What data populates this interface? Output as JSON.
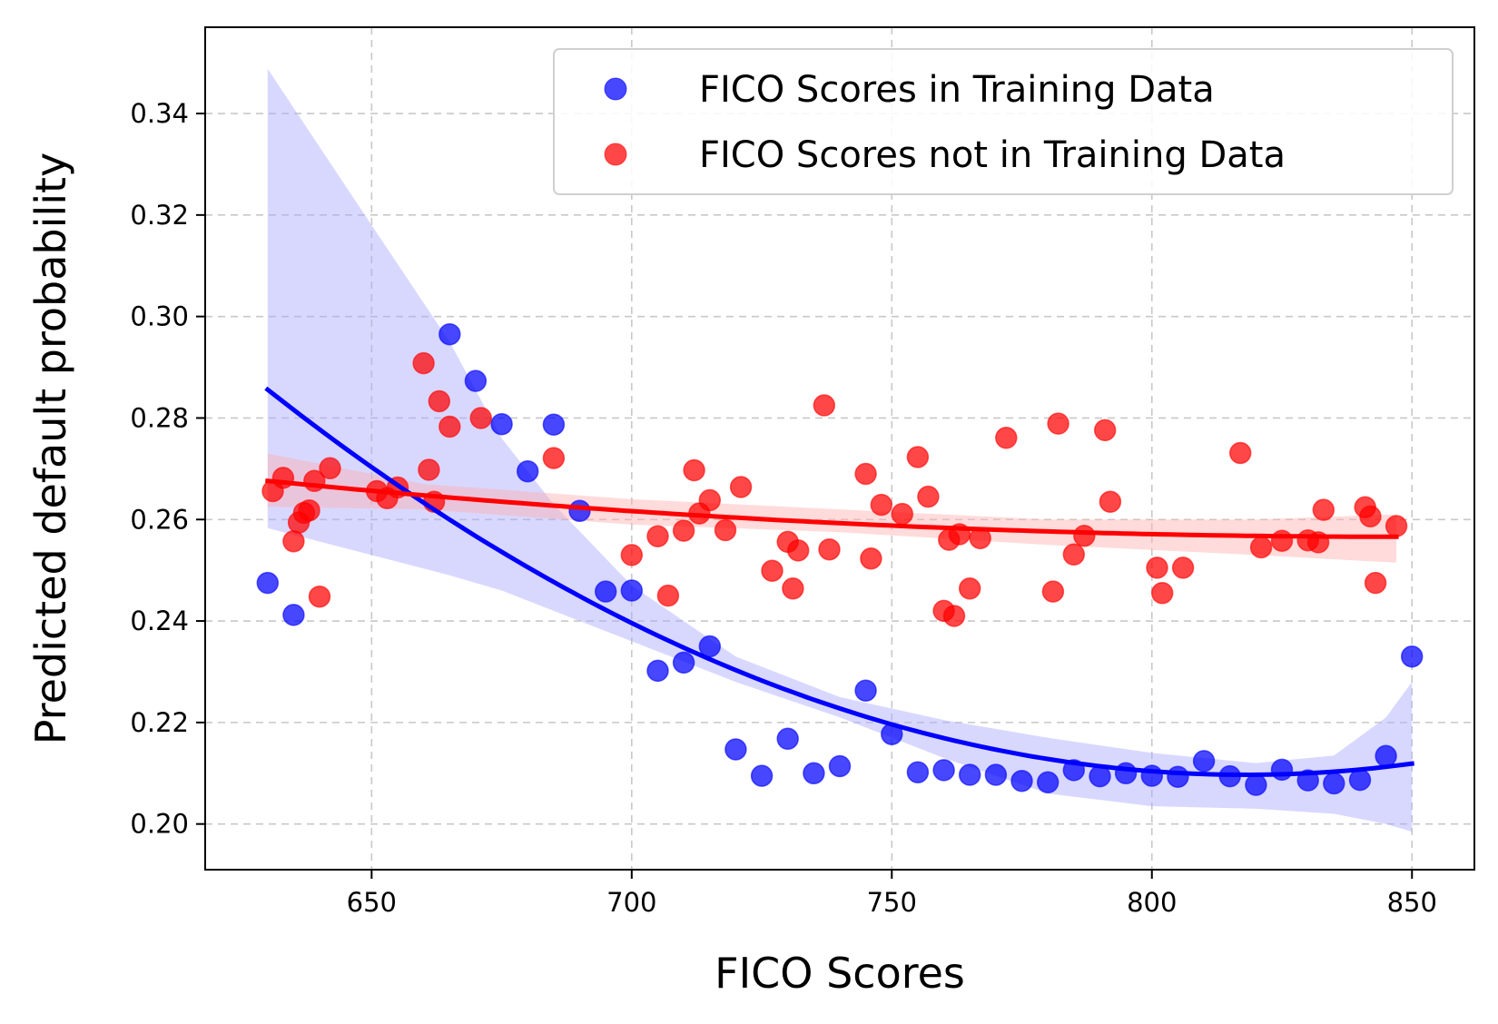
{
  "chart_data": {
    "type": "scatter",
    "title": "",
    "xlabel": "FICO Scores",
    "ylabel": "Predicted default probability",
    "xlim": [
      618,
      862
    ],
    "ylim": [
      0.191,
      0.357
    ],
    "xticks": [
      650,
      700,
      750,
      800,
      850
    ],
    "yticks": [
      0.2,
      0.22,
      0.24,
      0.26,
      0.28,
      0.3,
      0.32,
      0.34
    ],
    "xtick_labels": [
      "650",
      "700",
      "750",
      "800",
      "850"
    ],
    "ytick_labels": [
      "0.20",
      "0.22",
      "0.24",
      "0.26",
      "0.28",
      "0.30",
      "0.32",
      "0.34"
    ],
    "grid": true,
    "legend_position": "top-right",
    "series": [
      {
        "name": "FICO Scores in Training Data",
        "color": "#0000ff",
        "points": [
          [
            630,
            0.2475
          ],
          [
            635,
            0.2412
          ],
          [
            665,
            0.2965
          ],
          [
            670,
            0.2873
          ],
          [
            675,
            0.2788
          ],
          [
            680,
            0.2695
          ],
          [
            685,
            0.2787
          ],
          [
            690,
            0.2617
          ],
          [
            695,
            0.2458
          ],
          [
            700,
            0.246
          ],
          [
            705,
            0.2302
          ],
          [
            710,
            0.2318
          ],
          [
            715,
            0.235
          ],
          [
            720,
            0.2147
          ],
          [
            725,
            0.2095
          ],
          [
            730,
            0.2168
          ],
          [
            735,
            0.21
          ],
          [
            740,
            0.2114
          ],
          [
            745,
            0.2263
          ],
          [
            750,
            0.2177
          ],
          [
            755,
            0.2102
          ],
          [
            760,
            0.2106
          ],
          [
            765,
            0.2097
          ],
          [
            770,
            0.2097
          ],
          [
            775,
            0.2085
          ],
          [
            780,
            0.2082
          ],
          [
            785,
            0.2106
          ],
          [
            790,
            0.2094
          ],
          [
            795,
            0.21
          ],
          [
            800,
            0.2095
          ],
          [
            805,
            0.2093
          ],
          [
            810,
            0.2124
          ],
          [
            815,
            0.2094
          ],
          [
            820,
            0.2077
          ],
          [
            825,
            0.2107
          ],
          [
            830,
            0.2086
          ],
          [
            835,
            0.208
          ],
          [
            840,
            0.2087
          ],
          [
            845,
            0.2134
          ],
          [
            850,
            0.233
          ]
        ],
        "trend": {
          "type": "quadratic",
          "x_range": [
            630,
            850
          ],
          "start": [
            630,
            0.2856
          ],
          "vertex": [
            818,
            0.2097
          ],
          "end": [
            850,
            0.2113
          ]
        },
        "ci_band": {
          "x": [
            630,
            650,
            665,
            675,
            685,
            700,
            720,
            740,
            760,
            780,
            800,
            820,
            835,
            845,
            850
          ],
          "upper": [
            0.3488,
            0.318,
            0.295,
            0.276,
            0.263,
            0.247,
            0.233,
            0.225,
            0.2205,
            0.217,
            0.214,
            0.212,
            0.2135,
            0.221,
            0.228
          ],
          "lower": [
            0.2583,
            0.253,
            0.249,
            0.246,
            0.242,
            0.236,
            0.228,
            0.221,
            0.213,
            0.206,
            0.2035,
            0.203,
            0.202,
            0.2,
            0.1985
          ]
        }
      },
      {
        "name": "FICO Scores not in Training Data",
        "color": "#ff0000",
        "points": [
          [
            631,
            0.2656
          ],
          [
            633,
            0.2682
          ],
          [
            635,
            0.2557
          ],
          [
            636,
            0.2594
          ],
          [
            637,
            0.2613
          ],
          [
            638,
            0.2618
          ],
          [
            639,
            0.2676
          ],
          [
            640,
            0.2448
          ],
          [
            642,
            0.2701
          ],
          [
            651,
            0.2656
          ],
          [
            653,
            0.2642
          ],
          [
            655,
            0.2663
          ],
          [
            660,
            0.2908
          ],
          [
            661,
            0.2698
          ],
          [
            662,
            0.2635
          ],
          [
            663,
            0.2833
          ],
          [
            665,
            0.2783
          ],
          [
            671,
            0.28
          ],
          [
            685,
            0.2721
          ],
          [
            700,
            0.253
          ],
          [
            705,
            0.2567
          ],
          [
            707,
            0.245
          ],
          [
            710,
            0.2578
          ],
          [
            712,
            0.2697
          ],
          [
            713,
            0.2612
          ],
          [
            715,
            0.2638
          ],
          [
            718,
            0.2579
          ],
          [
            721,
            0.2664
          ],
          [
            727,
            0.2499
          ],
          [
            730,
            0.2556
          ],
          [
            731,
            0.2464
          ],
          [
            732,
            0.2539
          ],
          [
            737,
            0.2825
          ],
          [
            738,
            0.2541
          ],
          [
            745,
            0.269
          ],
          [
            746,
            0.2523
          ],
          [
            748,
            0.2629
          ],
          [
            752,
            0.2611
          ],
          [
            755,
            0.2723
          ],
          [
            757,
            0.2645
          ],
          [
            760,
            0.242
          ],
          [
            761,
            0.256
          ],
          [
            762,
            0.241
          ],
          [
            763,
            0.2571
          ],
          [
            765,
            0.2464
          ],
          [
            767,
            0.2563
          ],
          [
            772,
            0.2761
          ],
          [
            781,
            0.2458
          ],
          [
            782,
            0.2789
          ],
          [
            785,
            0.2531
          ],
          [
            787,
            0.2568
          ],
          [
            791,
            0.2776
          ],
          [
            792,
            0.2635
          ],
          [
            801,
            0.2505
          ],
          [
            802,
            0.2455
          ],
          [
            806,
            0.2505
          ],
          [
            817,
            0.2731
          ],
          [
            821,
            0.2545
          ],
          [
            825,
            0.2558
          ],
          [
            830,
            0.2559
          ],
          [
            832,
            0.2555
          ],
          [
            833,
            0.2619
          ],
          [
            841,
            0.2624
          ],
          [
            842,
            0.2606
          ],
          [
            843,
            0.2475
          ],
          [
            847,
            0.2587
          ]
        ],
        "trend": {
          "type": "quadratic",
          "x_range": [
            630,
            847
          ],
          "start": [
            630,
            0.2676
          ],
          "vertex": [
            847,
            0.2566
          ],
          "end": [
            847,
            0.2566
          ]
        },
        "ci_band": {
          "x": [
            630,
            660,
            700,
            740,
            780,
            820,
            847
          ],
          "upper": [
            0.273,
            0.267,
            0.264,
            0.262,
            0.26,
            0.26,
            0.261
          ],
          "lower": [
            0.2625,
            0.262,
            0.259,
            0.2575,
            0.255,
            0.253,
            0.2515
          ]
        }
      }
    ]
  }
}
